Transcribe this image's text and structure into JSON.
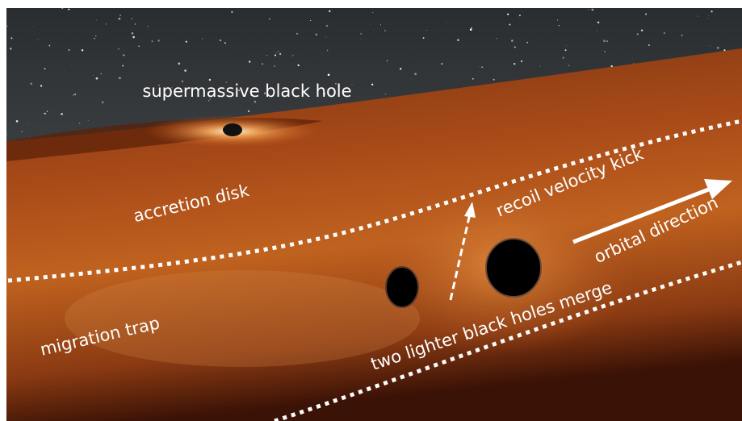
{
  "labels": {
    "supermassive_black_hole": "supermassive black hole",
    "accretion_disk": "accretion disk",
    "recoil_velocity_kick": "recoil velocity kick",
    "orbital_direction": "orbital direction",
    "migration_trap": "migration trap",
    "merge": "two lighter black holes merge"
  }
}
